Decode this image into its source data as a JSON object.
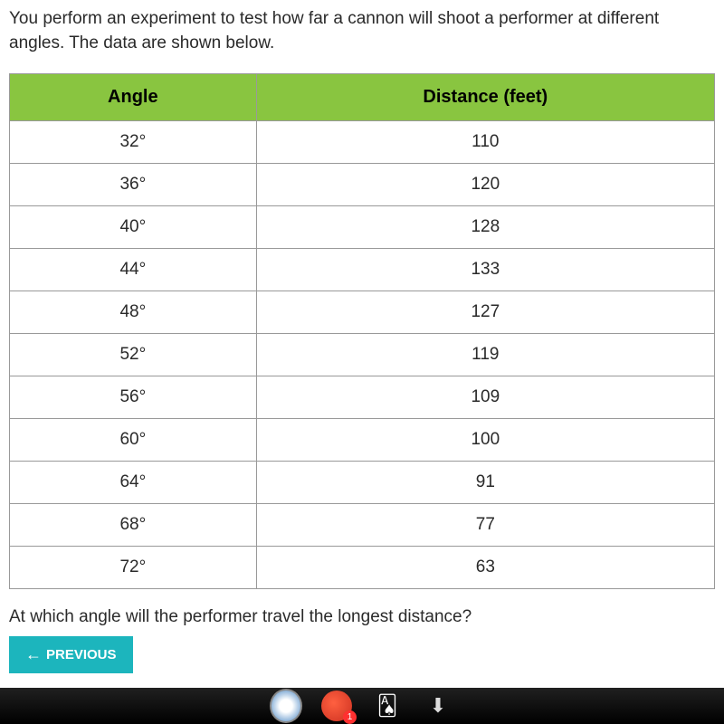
{
  "question": {
    "intro": "You perform an experiment to test how far a cannon will shoot a performer at different angles. The data are shown below.",
    "followup": "At which angle will the performer travel the longest distance?"
  },
  "table": {
    "columns": [
      "Angle",
      "Distance (feet)"
    ],
    "rows": [
      [
        "32°",
        "110"
      ],
      [
        "36°",
        "120"
      ],
      [
        "40°",
        "128"
      ],
      [
        "44°",
        "133"
      ],
      [
        "48°",
        "127"
      ],
      [
        "52°",
        "119"
      ],
      [
        "56°",
        "109"
      ],
      [
        "60°",
        "100"
      ],
      [
        "64°",
        "91"
      ],
      [
        "68°",
        "77"
      ],
      [
        "72°",
        "63"
      ]
    ],
    "header_bg": "#89c540",
    "border_color": "#999999",
    "cell_fontsize": 19,
    "header_fontsize": 20
  },
  "buttons": {
    "previous": "PREVIOUS"
  },
  "taskbar": {
    "badge_count": "1"
  },
  "colors": {
    "page_bg": "#ffffff",
    "body_bg": "#f0f0f0",
    "text": "#2a2a2a",
    "button_bg": "#1cb5bd",
    "button_text": "#ffffff"
  }
}
